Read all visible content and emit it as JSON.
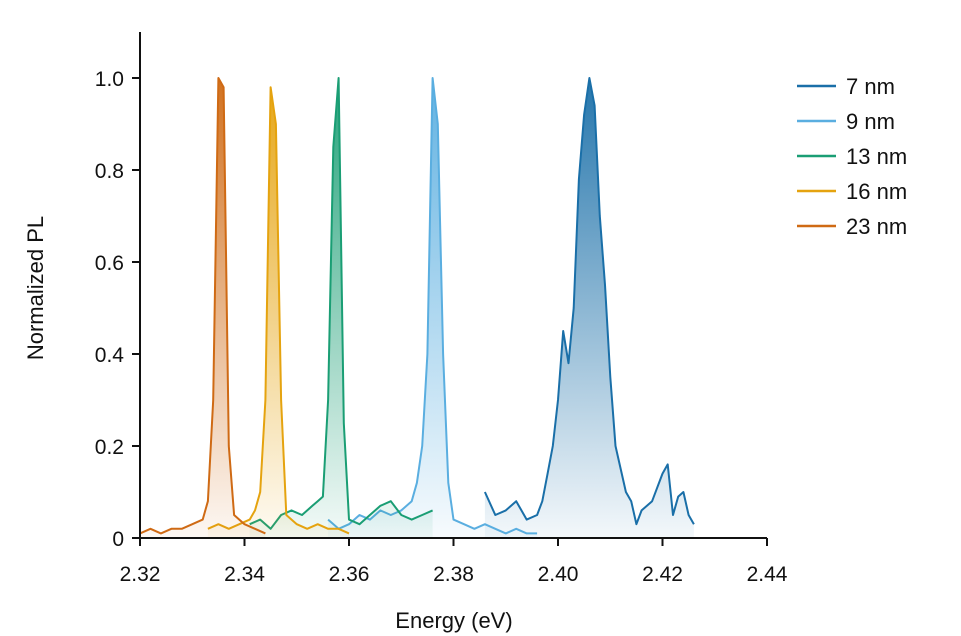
{
  "chart_data": {
    "type": "line",
    "title": "",
    "xlabel": "Energy (eV)",
    "ylabel": "Normalized PL",
    "xlim": [
      2.32,
      2.44
    ],
    "ylim": [
      0,
      1.1
    ],
    "x_ticks": [
      2.32,
      2.34,
      2.36,
      2.38,
      2.4,
      2.42,
      2.44
    ],
    "x_tick_labels": [
      "2.32",
      "2.34",
      "2.36",
      "2.38",
      "2.40",
      "2.42",
      "2.44"
    ],
    "y_ticks": [
      0,
      0.2,
      0.4,
      0.6,
      0.8,
      1.0
    ],
    "y_tick_labels": [
      "0",
      "0.2",
      "0.4",
      "0.6",
      "0.8",
      "1.0"
    ],
    "grid": false,
    "legend_position": "top-right",
    "series": [
      {
        "name": "7 nm",
        "color": "#1a6fa8",
        "fill": "#1a6fa8",
        "x": [
          2.386,
          2.388,
          2.39,
          2.392,
          2.394,
          2.396,
          2.397,
          2.398,
          2.399,
          2.4,
          2.401,
          2.402,
          2.403,
          2.404,
          2.405,
          2.406,
          2.407,
          2.408,
          2.409,
          2.41,
          2.411,
          2.412,
          2.413,
          2.414,
          2.415,
          2.416,
          2.418,
          2.42,
          2.421,
          2.422,
          2.423,
          2.424,
          2.425,
          2.426
        ],
        "y": [
          0.1,
          0.05,
          0.06,
          0.08,
          0.04,
          0.05,
          0.08,
          0.14,
          0.2,
          0.3,
          0.45,
          0.38,
          0.5,
          0.78,
          0.92,
          1.0,
          0.94,
          0.7,
          0.55,
          0.35,
          0.2,
          0.15,
          0.1,
          0.08,
          0.03,
          0.06,
          0.08,
          0.14,
          0.16,
          0.05,
          0.09,
          0.1,
          0.05,
          0.03
        ]
      },
      {
        "name": "9 nm",
        "color": "#5aaee0",
        "fill": "#5aaee0",
        "x": [
          2.356,
          2.358,
          2.36,
          2.362,
          2.364,
          2.366,
          2.368,
          2.37,
          2.372,
          2.373,
          2.374,
          2.375,
          2.376,
          2.377,
          2.378,
          2.379,
          2.38,
          2.382,
          2.384,
          2.386,
          2.388,
          2.39,
          2.392,
          2.394,
          2.396
        ],
        "y": [
          0.04,
          0.02,
          0.03,
          0.05,
          0.04,
          0.06,
          0.05,
          0.06,
          0.08,
          0.12,
          0.2,
          0.4,
          1.0,
          0.9,
          0.4,
          0.12,
          0.04,
          0.03,
          0.02,
          0.03,
          0.02,
          0.01,
          0.02,
          0.01,
          0.01
        ]
      },
      {
        "name": "13 nm",
        "color": "#1a9e74",
        "fill": "#1a9e74",
        "x": [
          2.341,
          2.343,
          2.345,
          2.347,
          2.349,
          2.351,
          2.353,
          2.354,
          2.355,
          2.356,
          2.357,
          2.358,
          2.359,
          2.36,
          2.362,
          2.364,
          2.366,
          2.368,
          2.37,
          2.372,
          2.374,
          2.376
        ],
        "y": [
          0.03,
          0.04,
          0.02,
          0.05,
          0.06,
          0.05,
          0.07,
          0.08,
          0.09,
          0.3,
          0.85,
          1.0,
          0.25,
          0.04,
          0.03,
          0.05,
          0.07,
          0.08,
          0.05,
          0.04,
          0.05,
          0.06
        ]
      },
      {
        "name": "16 nm",
        "color": "#e5a30f",
        "fill": "#e5a30f",
        "x": [
          2.333,
          2.335,
          2.337,
          2.339,
          2.341,
          2.342,
          2.343,
          2.344,
          2.345,
          2.346,
          2.347,
          2.348,
          2.35,
          2.352,
          2.354,
          2.356,
          2.358,
          2.36
        ],
        "y": [
          0.02,
          0.03,
          0.02,
          0.03,
          0.04,
          0.06,
          0.1,
          0.3,
          0.98,
          0.9,
          0.3,
          0.05,
          0.03,
          0.02,
          0.03,
          0.02,
          0.02,
          0.01
        ]
      },
      {
        "name": "23 nm",
        "color": "#cf6a14",
        "fill": "#cf6a14",
        "x": [
          2.32,
          2.322,
          2.324,
          2.326,
          2.328,
          2.33,
          2.332,
          2.333,
          2.334,
          2.335,
          2.336,
          2.337,
          2.338,
          2.34,
          2.342,
          2.344
        ],
        "y": [
          0.01,
          0.02,
          0.01,
          0.02,
          0.02,
          0.03,
          0.04,
          0.08,
          0.3,
          1.0,
          0.98,
          0.2,
          0.05,
          0.03,
          0.02,
          0.01
        ]
      }
    ]
  }
}
